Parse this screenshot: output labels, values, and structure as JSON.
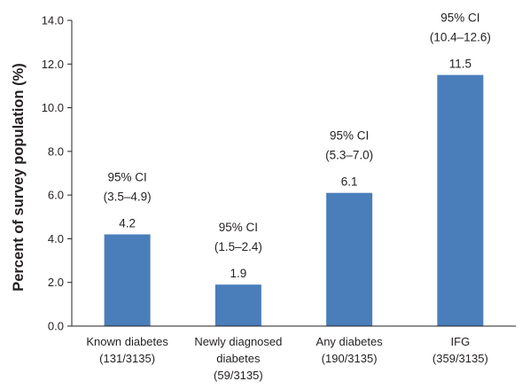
{
  "chart_data": {
    "type": "bar",
    "title": "",
    "xlabel": "",
    "ylabel": "Percent of survey population (%)",
    "ylim": [
      0,
      14
    ],
    "yticks": [
      "0.0",
      "2.0",
      "4.0",
      "6.0",
      "8.0",
      "10.0",
      "12.0",
      "14.0"
    ],
    "grid": false,
    "legend": "none",
    "bar_color": "#4a7ebb",
    "categories": [
      [
        "Known diabetes",
        "(131/3135)"
      ],
      [
        "Newly diagnosed",
        "diabetes",
        "(59/3135)"
      ],
      [
        "Any diabetes",
        "(190/3135)"
      ],
      [
        "IFG",
        "(359/3135)"
      ]
    ],
    "values": [
      4.2,
      1.9,
      6.1,
      11.5
    ],
    "value_labels": [
      "4.2",
      "1.9",
      "6.1",
      "11.5"
    ],
    "ci_labels": [
      [
        "95% CI",
        "(3.5–4.9)"
      ],
      [
        "95% CI",
        "(1.5–2.4)"
      ],
      [
        "95% CI",
        "(5.3–7.0)"
      ],
      [
        "95% CI",
        "(10.4–12.6)"
      ]
    ]
  }
}
